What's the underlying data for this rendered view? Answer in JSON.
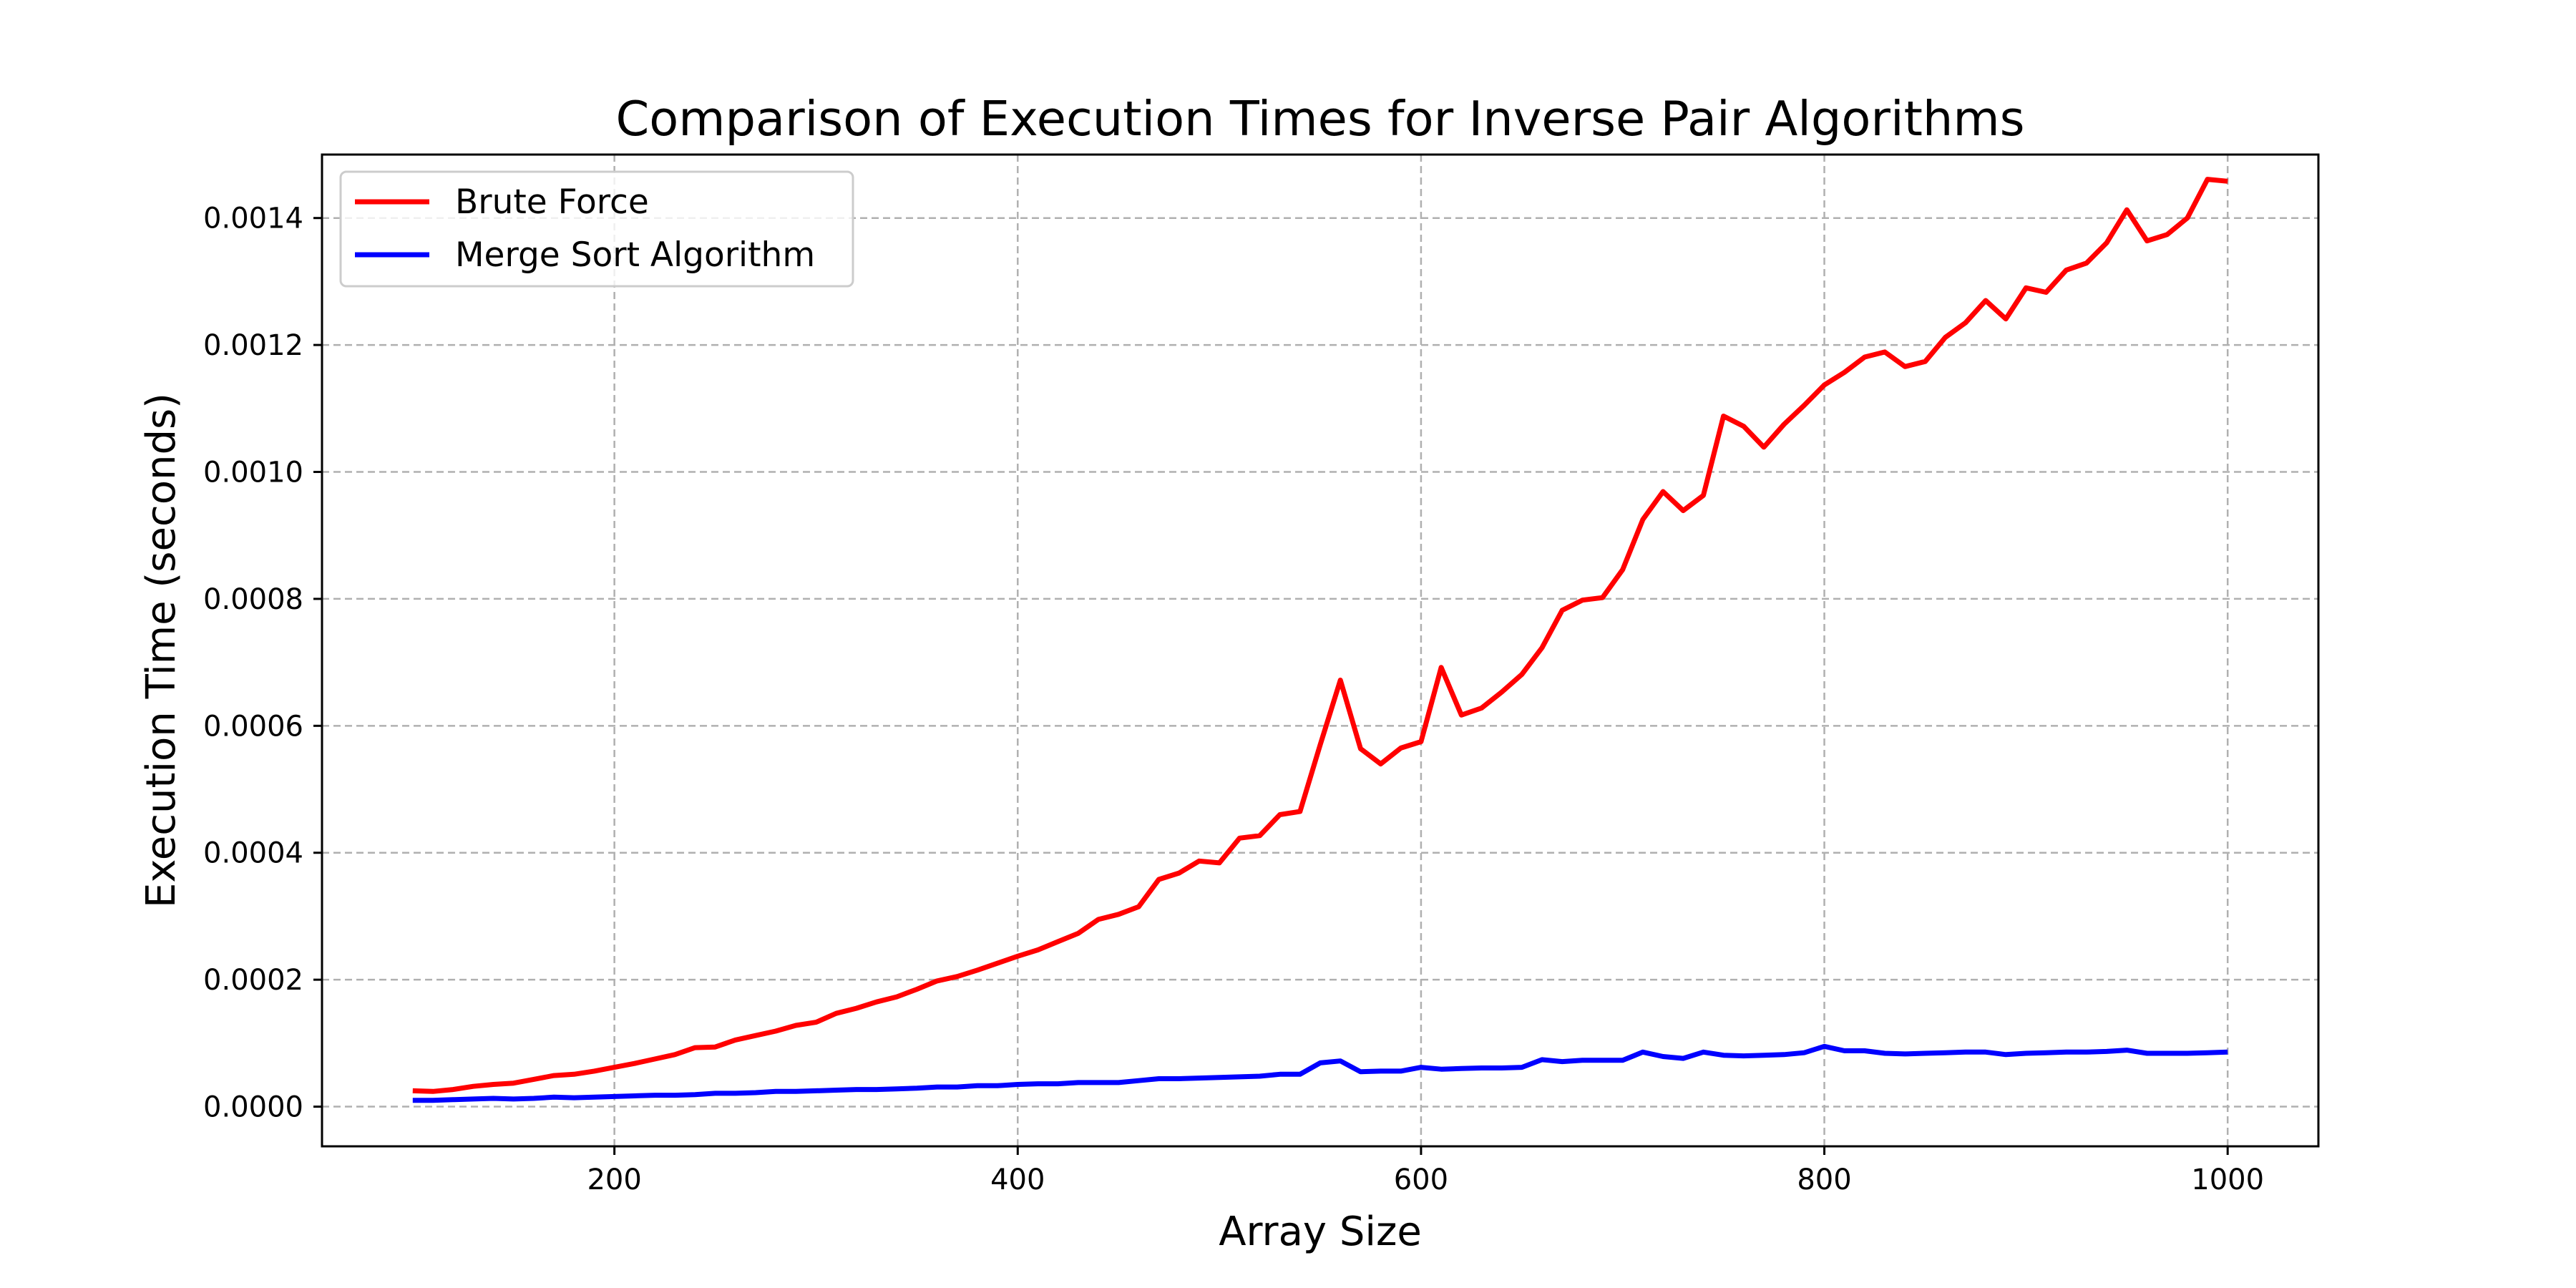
{
  "chart_data": {
    "type": "line",
    "title": "Comparison of Execution Times for Inverse Pair Algorithms",
    "xlabel": "Array Size",
    "ylabel": "Execution Time (seconds)",
    "xlim": [
      55,
      1045
    ],
    "ylim": [
      -6.25e-05,
      0.0015
    ],
    "xticks": [
      200,
      400,
      600,
      800,
      1000
    ],
    "xtick_labels": [
      "200",
      "400",
      "600",
      "800",
      "1000"
    ],
    "yticks": [
      0.0,
      0.0002,
      0.0004,
      0.0006,
      0.0008,
      0.001,
      0.0012,
      0.0014
    ],
    "ytick_labels": [
      "0.0000",
      "0.0002",
      "0.0004",
      "0.0006",
      "0.0008",
      "0.0010",
      "0.0012",
      "0.0014"
    ],
    "grid": true,
    "legend_position": "top-left",
    "x": [
      100,
      110,
      120,
      130,
      140,
      150,
      160,
      170,
      180,
      190,
      200,
      210,
      220,
      230,
      240,
      250,
      260,
      270,
      280,
      290,
      300,
      310,
      320,
      330,
      340,
      350,
      360,
      370,
      380,
      390,
      400,
      410,
      420,
      430,
      440,
      450,
      460,
      470,
      480,
      490,
      500,
      510,
      520,
      530,
      540,
      550,
      560,
      570,
      580,
      590,
      600,
      610,
      620,
      630,
      640,
      650,
      660,
      670,
      680,
      690,
      700,
      710,
      720,
      730,
      740,
      750,
      760,
      770,
      780,
      790,
      800,
      810,
      820,
      830,
      840,
      850,
      860,
      870,
      880,
      890,
      900,
      910,
      920,
      930,
      940,
      950,
      960,
      970,
      980,
      990,
      1000
    ],
    "series": [
      {
        "name": "Brute Force",
        "color": "#ff0000",
        "values": [
          2.5e-05,
          2.4e-05,
          2.7e-05,
          3.2e-05,
          3.5e-05,
          3.7e-05,
          4.3e-05,
          4.9e-05,
          5.1e-05,
          5.6e-05,
          6.2e-05,
          6.8e-05,
          7.5e-05,
          8.2e-05,
          9.3e-05,
          9.4e-05,
          0.000105,
          0.000112,
          0.000119,
          0.000128,
          0.000133,
          0.000147,
          0.000155,
          0.000165,
          0.000173,
          0.000185,
          0.000198,
          0.000205,
          0.000215,
          0.000226,
          0.000237,
          0.000247,
          0.00026,
          0.000273,
          0.000295,
          0.000303,
          0.000315,
          0.000358,
          0.000368,
          0.000387,
          0.000384,
          0.000423,
          0.000427,
          0.00046,
          0.000465,
          0.00057,
          0.000672,
          0.000564,
          0.00054,
          0.000565,
          0.000575,
          0.000692,
          0.000617,
          0.000628,
          0.000653,
          0.000681,
          0.000723,
          0.000782,
          0.000798,
          0.000802,
          0.000846,
          0.000925,
          0.000969,
          0.000939,
          0.000963,
          0.001088,
          0.001072,
          0.001039,
          0.001075,
          0.001105,
          0.001137,
          0.001157,
          0.001181,
          0.001189,
          0.001166,
          0.001174,
          0.001212,
          0.001235,
          0.00127,
          0.001241,
          0.00129,
          0.001283,
          0.001318,
          0.001329,
          0.001361,
          0.001413,
          0.001364,
          0.001374,
          0.0014,
          0.001461,
          0.001458
        ]
      },
      {
        "name": "Merge Sort Algorithm",
        "color": "#0000ff",
        "values": [
          1e-05,
          1e-05,
          1.1e-05,
          1.2e-05,
          1.3e-05,
          1.2e-05,
          1.3e-05,
          1.5e-05,
          1.4e-05,
          1.5e-05,
          1.6e-05,
          1.7e-05,
          1.8e-05,
          1.8e-05,
          1.9e-05,
          2.1e-05,
          2.1e-05,
          2.2e-05,
          2.4e-05,
          2.4e-05,
          2.5e-05,
          2.6e-05,
          2.7e-05,
          2.7e-05,
          2.8e-05,
          2.9e-05,
          3.1e-05,
          3.1e-05,
          3.3e-05,
          3.3e-05,
          3.5e-05,
          3.6e-05,
          3.6e-05,
          3.8e-05,
          3.8e-05,
          3.8e-05,
          4.1e-05,
          4.4e-05,
          4.4e-05,
          4.5e-05,
          4.6e-05,
          4.7e-05,
          4.8e-05,
          5.1e-05,
          5.1e-05,
          6.9e-05,
          7.2e-05,
          5.5e-05,
          5.6e-05,
          5.6e-05,
          6.2e-05,
          5.9e-05,
          6e-05,
          6.1e-05,
          6.1e-05,
          6.2e-05,
          7.4e-05,
          7.1e-05,
          7.3e-05,
          7.3e-05,
          7.3e-05,
          8.6e-05,
          7.9e-05,
          7.6e-05,
          8.6e-05,
          8.1e-05,
          8e-05,
          8.1e-05,
          8.2e-05,
          8.5e-05,
          9.5e-05,
          8.8e-05,
          8.8e-05,
          8.4e-05,
          8.3e-05,
          8.4e-05,
          8.5e-05,
          8.6e-05,
          8.6e-05,
          8.2e-05,
          8.4e-05,
          8.5e-05,
          8.6e-05,
          8.6e-05,
          8.7e-05,
          8.9e-05,
          8.4e-05,
          8.4e-05,
          8.4e-05,
          8.5e-05,
          8.6e-05
        ]
      }
    ]
  }
}
